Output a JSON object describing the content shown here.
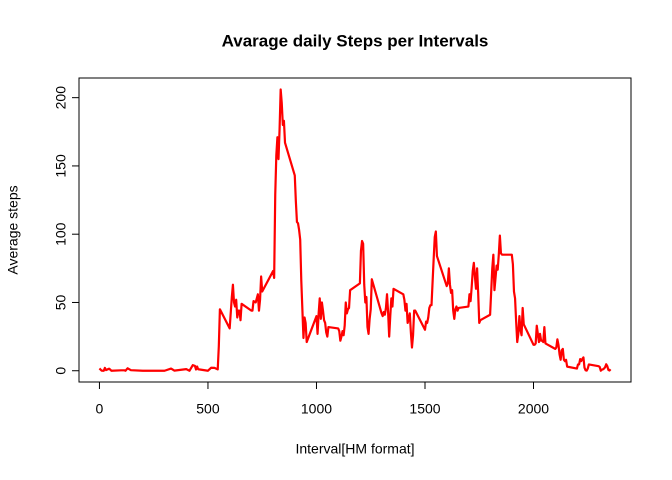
{
  "chart_data": {
    "type": "line",
    "title": "Avarage daily Steps per Intervals",
    "x_label": "Interval[HM format]",
    "y_label": "Average steps",
    "xlim": [
      -94.2,
      2449.2
    ],
    "ylim": [
      -8.25,
      214.4
    ],
    "xticks": [
      0,
      500,
      1000,
      1500,
      2000
    ],
    "yticks": [
      0,
      50,
      100,
      150,
      200
    ],
    "series": [
      {
        "color": "#ff0000",
        "x": [
          0,
          10,
          20,
          25,
          30,
          45,
          55,
          100,
          115,
          120,
          130,
          145,
          200,
          230,
          245,
          300,
          330,
          345,
          400,
          415,
          430,
          440,
          445,
          450,
          455,
          500,
          515,
          530,
          545,
          550,
          555,
          600,
          610,
          615,
          620,
          625,
          630,
          635,
          640,
          645,
          650,
          655,
          700,
          705,
          710,
          720,
          730,
          735,
          740,
          745,
          750,
          800,
          805,
          810,
          815,
          820,
          825,
          830,
          835,
          840,
          845,
          850,
          855,
          900,
          905,
          910,
          915,
          920,
          925,
          930,
          935,
          940,
          945,
          950,
          955,
          1000,
          1005,
          1010,
          1015,
          1020,
          1025,
          1030,
          1035,
          1040,
          1045,
          1050,
          1055,
          1100,
          1105,
          1110,
          1115,
          1120,
          1125,
          1130,
          1135,
          1140,
          1145,
          1150,
          1155,
          1200,
          1205,
          1210,
          1215,
          1220,
          1225,
          1230,
          1235,
          1240,
          1245,
          1250,
          1255,
          1300,
          1305,
          1310,
          1315,
          1320,
          1325,
          1330,
          1335,
          1340,
          1345,
          1350,
          1355,
          1400,
          1405,
          1410,
          1415,
          1420,
          1425,
          1430,
          1435,
          1440,
          1445,
          1450,
          1455,
          1500,
          1505,
          1510,
          1515,
          1520,
          1525,
          1530,
          1535,
          1540,
          1545,
          1550,
          1555,
          1600,
          1605,
          1610,
          1615,
          1620,
          1625,
          1630,
          1635,
          1640,
          1645,
          1650,
          1655,
          1700,
          1705,
          1710,
          1715,
          1720,
          1725,
          1730,
          1735,
          1740,
          1745,
          1750,
          1755,
          1800,
          1805,
          1810,
          1815,
          1820,
          1825,
          1830,
          1835,
          1840,
          1845,
          1850,
          1855,
          1900,
          1905,
          1910,
          1915,
          1920,
          1925,
          1930,
          1935,
          1940,
          1945,
          1950,
          1955,
          2000,
          2005,
          2010,
          2015,
          2020,
          2025,
          2030,
          2035,
          2040,
          2045,
          2050,
          2055,
          2100,
          2105,
          2110,
          2115,
          2120,
          2125,
          2130,
          2135,
          2140,
          2145,
          2150,
          2155,
          2200,
          2205,
          2210,
          2215,
          2220,
          2225,
          2230,
          2235,
          2240,
          2245,
          2250,
          2255,
          2300,
          2305,
          2310,
          2315,
          2320,
          2325,
          2330,
          2335,
          2340,
          2345,
          2350,
          2355
        ],
        "values": [
          1.7,
          0.1,
          0,
          2.1,
          0.5,
          1.5,
          0,
          0.3,
          0.3,
          0,
          1.8,
          0.4,
          0,
          0,
          0,
          0,
          1.6,
          0.1,
          1.2,
          0,
          4.1,
          3.5,
          0.9,
          3.1,
          1.1,
          0,
          2.2,
          2.1,
          1.0,
          18,
          45,
          31,
          54,
          63,
          50,
          47,
          52,
          39,
          44,
          44,
          37,
          49,
          44,
          44,
          51,
          50,
          56,
          44,
          52,
          69,
          58,
          73,
          68,
          129,
          158,
          171,
          155,
          177,
          206,
          196,
          180,
          183,
          167,
          143,
          124,
          109,
          108,
          103,
          96,
          66,
          45,
          24,
          39,
          35,
          21,
          40,
          27,
          42,
          53,
          38,
          50,
          44,
          37,
          35,
          28,
          25,
          32,
          31,
          29,
          22,
          25,
          29,
          26,
          33,
          50,
          42,
          45,
          46,
          59,
          64,
          88,
          95,
          93,
          63,
          50,
          54,
          32,
          27,
          38,
          45,
          67,
          42,
          40,
          43,
          41,
          46,
          56,
          43,
          25,
          40,
          53,
          47,
          60,
          56,
          52,
          44,
          49,
          35,
          38,
          42,
          28,
          17,
          26,
          44,
          44,
          30,
          36,
          35,
          39,
          46,
          48,
          48,
          65,
          82,
          98,
          102,
          84,
          62,
          64,
          75,
          63,
          57,
          59,
          44,
          38,
          45,
          47,
          44,
          46,
          47,
          56,
          51,
          61,
          73,
          79,
          69,
          60,
          75,
          57,
          35,
          37,
          41,
          58,
          75,
          85,
          59,
          68,
          77,
          74,
          85,
          99,
          86,
          85,
          85,
          78,
          58,
          53,
          36,
          21,
          27,
          40,
          30,
          26,
          46,
          34,
          19,
          19,
          20,
          33,
          27,
          21,
          27,
          22,
          22,
          21,
          32,
          20,
          16,
          17,
          23,
          19,
          12,
          8,
          15,
          16,
          8,
          7,
          8,
          3,
          1.6,
          4.6,
          4.6,
          8.5,
          7.1,
          8.7,
          9.8,
          2.2,
          0.3,
          0.1,
          1.6,
          4.6,
          3.3,
          2.8,
          0,
          0.8,
          1.0,
          1.6,
          2.6,
          4.7,
          3.3,
          0.6,
          0.2,
          1.1
        ]
      }
    ]
  }
}
